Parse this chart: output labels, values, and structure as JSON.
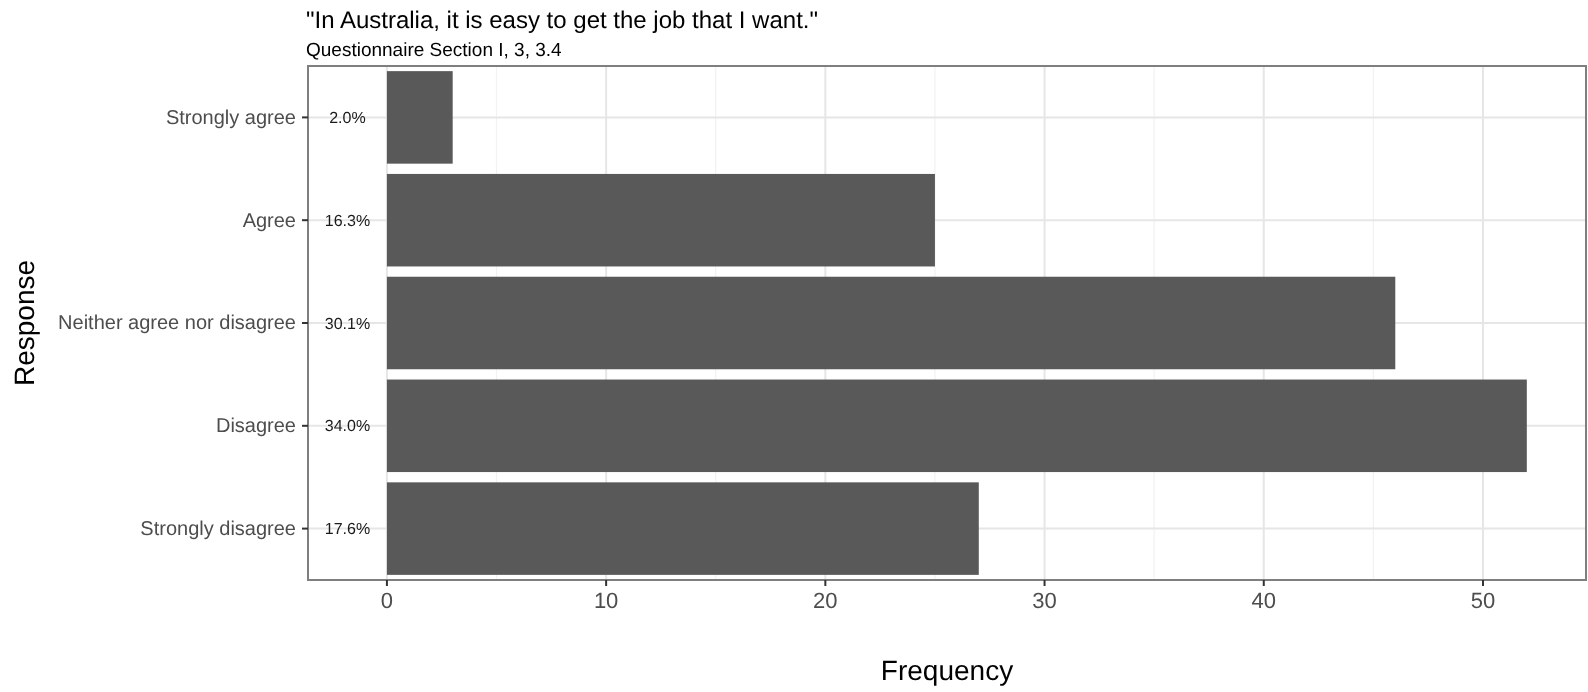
{
  "chart_data": {
    "type": "bar",
    "orientation": "horizontal",
    "title": "\"In Australia, it is easy to get the job that I want.\"",
    "subtitle": "Questionnaire Section I, 3, 3.4",
    "xlabel": "Frequency",
    "ylabel": "Response",
    "categories": [
      "Strongly agree",
      "Agree",
      "Neither agree nor disagree",
      "Disagree",
      "Strongly disagree"
    ],
    "values": [
      3,
      25,
      46,
      52,
      27
    ],
    "annotations": [
      "2.0%",
      "16.3%",
      "30.1%",
      "34.0%",
      "17.6%"
    ],
    "color": "#595959",
    "xlim": [
      -3.6,
      54.7
    ],
    "xticks": [
      0,
      10,
      20,
      30,
      40,
      50
    ],
    "grid": true
  }
}
